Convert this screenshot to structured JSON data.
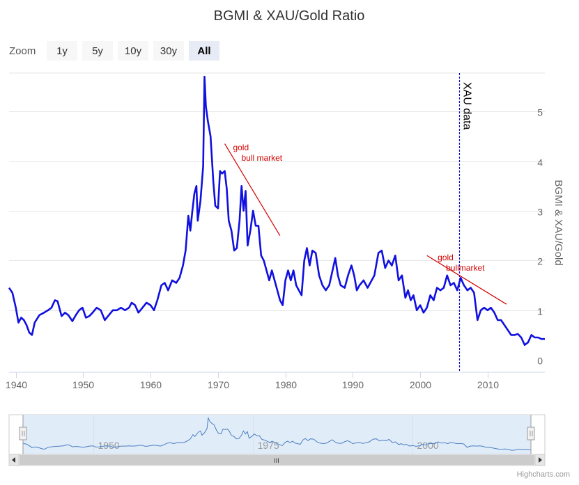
{
  "chart_data": {
    "type": "line",
    "title": "BGMI & XAU/Gold Ratio",
    "ylabel": "BGMI & XAU/Gold",
    "xlabel": "",
    "xlim": [
      1939,
      2018.5
    ],
    "ylim": [
      0,
      6
    ],
    "x_ticks": [
      1940,
      1950,
      1960,
      1970,
      1980,
      1990,
      2000,
      2010
    ],
    "y_ticks": [
      0,
      1,
      2,
      3,
      4,
      5
    ],
    "grid": true,
    "legend": "none",
    "series": [
      {
        "color": "#1010e0",
        "points": [
          [
            1939.0,
            1.45
          ],
          [
            1939.5,
            1.35
          ],
          [
            1940.0,
            1.05
          ],
          [
            1940.4,
            0.75
          ],
          [
            1940.8,
            0.85
          ],
          [
            1941.2,
            0.8
          ],
          [
            1941.6,
            0.7
          ],
          [
            1942.0,
            0.55
          ],
          [
            1942.4,
            0.5
          ],
          [
            1942.8,
            0.75
          ],
          [
            1943.5,
            0.9
          ],
          [
            1944.2,
            0.95
          ],
          [
            1944.8,
            1.0
          ],
          [
            1945.3,
            1.05
          ],
          [
            1945.8,
            1.2
          ],
          [
            1946.2,
            1.18
          ],
          [
            1946.8,
            0.88
          ],
          [
            1947.3,
            0.95
          ],
          [
            1947.8,
            0.9
          ],
          [
            1948.4,
            0.78
          ],
          [
            1948.9,
            0.9
          ],
          [
            1949.4,
            1.0
          ],
          [
            1949.9,
            1.05
          ],
          [
            1950.4,
            0.85
          ],
          [
            1950.9,
            0.88
          ],
          [
            1951.4,
            0.95
          ],
          [
            1952.0,
            1.05
          ],
          [
            1952.6,
            1.0
          ],
          [
            1953.2,
            0.8
          ],
          [
            1953.8,
            0.9
          ],
          [
            1954.4,
            1.0
          ],
          [
            1955.0,
            1.0
          ],
          [
            1955.6,
            1.05
          ],
          [
            1956.2,
            1.0
          ],
          [
            1956.8,
            1.05
          ],
          [
            1957.2,
            1.15
          ],
          [
            1957.7,
            1.1
          ],
          [
            1958.2,
            0.95
          ],
          [
            1958.8,
            1.05
          ],
          [
            1959.4,
            1.15
          ],
          [
            1960.0,
            1.1
          ],
          [
            1960.5,
            1.0
          ],
          [
            1961.0,
            1.2
          ],
          [
            1961.6,
            1.5
          ],
          [
            1962.1,
            1.55
          ],
          [
            1962.6,
            1.4
          ],
          [
            1963.2,
            1.6
          ],
          [
            1963.8,
            1.55
          ],
          [
            1964.3,
            1.65
          ],
          [
            1964.8,
            1.9
          ],
          [
            1965.2,
            2.2
          ],
          [
            1965.6,
            2.9
          ],
          [
            1965.9,
            2.6
          ],
          [
            1966.2,
            3.0
          ],
          [
            1966.5,
            3.35
          ],
          [
            1966.8,
            3.5
          ],
          [
            1967.0,
            2.8
          ],
          [
            1967.4,
            3.2
          ],
          [
            1967.8,
            3.9
          ],
          [
            1968.0,
            5.7
          ],
          [
            1968.2,
            5.1
          ],
          [
            1968.5,
            4.8
          ],
          [
            1968.9,
            4.5
          ],
          [
            1969.3,
            3.6
          ],
          [
            1969.6,
            3.1
          ],
          [
            1970.0,
            3.05
          ],
          [
            1970.3,
            3.8
          ],
          [
            1970.6,
            3.75
          ],
          [
            1971.0,
            3.8
          ],
          [
            1971.3,
            3.45
          ],
          [
            1971.6,
            2.8
          ],
          [
            1972.0,
            2.6
          ],
          [
            1972.4,
            2.2
          ],
          [
            1972.8,
            2.25
          ],
          [
            1973.2,
            2.8
          ],
          [
            1973.5,
            3.5
          ],
          [
            1973.8,
            3.0
          ],
          [
            1974.1,
            3.4
          ],
          [
            1974.4,
            2.3
          ],
          [
            1974.8,
            2.6
          ],
          [
            1975.2,
            3.0
          ],
          [
            1975.6,
            2.7
          ],
          [
            1976.0,
            2.7
          ],
          [
            1976.4,
            2.1
          ],
          [
            1976.8,
            2.0
          ],
          [
            1977.2,
            1.8
          ],
          [
            1977.6,
            1.6
          ],
          [
            1978.0,
            1.8
          ],
          [
            1978.4,
            1.6
          ],
          [
            1978.8,
            1.4
          ],
          [
            1979.2,
            1.2
          ],
          [
            1979.6,
            1.1
          ],
          [
            1980.0,
            1.6
          ],
          [
            1980.4,
            1.8
          ],
          [
            1980.8,
            1.6
          ],
          [
            1981.2,
            1.8
          ],
          [
            1981.6,
            1.5
          ],
          [
            1982.0,
            1.4
          ],
          [
            1982.4,
            1.3
          ],
          [
            1982.8,
            2.0
          ],
          [
            1983.2,
            2.25
          ],
          [
            1983.6,
            1.9
          ],
          [
            1984.0,
            2.2
          ],
          [
            1984.5,
            2.15
          ],
          [
            1985.0,
            1.7
          ],
          [
            1985.5,
            1.5
          ],
          [
            1986.0,
            1.4
          ],
          [
            1986.5,
            1.5
          ],
          [
            1987.0,
            1.8
          ],
          [
            1987.4,
            2.05
          ],
          [
            1987.8,
            1.7
          ],
          [
            1988.2,
            1.5
          ],
          [
            1988.8,
            1.45
          ],
          [
            1989.3,
            1.7
          ],
          [
            1989.8,
            1.9
          ],
          [
            1990.2,
            1.7
          ],
          [
            1990.6,
            1.4
          ],
          [
            1991.0,
            1.5
          ],
          [
            1991.6,
            1.6
          ],
          [
            1992.2,
            1.45
          ],
          [
            1992.6,
            1.55
          ],
          [
            1993.2,
            1.7
          ],
          [
            1993.8,
            2.15
          ],
          [
            1994.3,
            2.2
          ],
          [
            1994.8,
            1.85
          ],
          [
            1995.3,
            2.0
          ],
          [
            1995.8,
            1.9
          ],
          [
            1996.3,
            2.1
          ],
          [
            1996.8,
            1.6
          ],
          [
            1997.3,
            1.7
          ],
          [
            1997.8,
            1.25
          ],
          [
            1998.2,
            1.4
          ],
          [
            1998.6,
            1.2
          ],
          [
            1999.0,
            1.3
          ],
          [
            1999.5,
            1.0
          ],
          [
            2000.0,
            1.1
          ],
          [
            2000.5,
            0.95
          ],
          [
            2001.0,
            1.05
          ],
          [
            2001.5,
            1.3
          ],
          [
            2002.0,
            1.2
          ],
          [
            2002.5,
            1.45
          ],
          [
            2003.0,
            1.4
          ],
          [
            2003.5,
            1.45
          ],
          [
            2004.0,
            1.7
          ],
          [
            2004.5,
            1.5
          ],
          [
            2005.0,
            1.55
          ],
          [
            2005.5,
            1.4
          ],
          [
            2006.0,
            1.65
          ],
          [
            2006.5,
            1.5
          ],
          [
            2007.0,
            1.4
          ],
          [
            2007.5,
            1.45
          ],
          [
            2008.0,
            1.35
          ],
          [
            2008.5,
            0.8
          ],
          [
            2009.0,
            1.0
          ],
          [
            2009.5,
            1.05
          ],
          [
            2010.0,
            1.0
          ],
          [
            2010.5,
            1.05
          ],
          [
            2011.0,
            0.95
          ],
          [
            2011.5,
            0.8
          ],
          [
            2012.0,
            0.8
          ],
          [
            2012.5,
            0.7
          ],
          [
            2013.0,
            0.6
          ],
          [
            2013.5,
            0.5
          ],
          [
            2014.0,
            0.5
          ],
          [
            2014.5,
            0.52
          ],
          [
            2015.0,
            0.45
          ],
          [
            2015.5,
            0.3
          ],
          [
            2016.0,
            0.35
          ],
          [
            2016.5,
            0.5
          ],
          [
            2017.0,
            0.45
          ],
          [
            2017.5,
            0.45
          ],
          [
            2018.0,
            0.42
          ],
          [
            2018.5,
            0.42
          ]
        ]
      }
    ],
    "annotations": [
      {
        "text_line1": "gold",
        "text_line2": "bull market",
        "color": "#d40000",
        "from": [
          1971.0,
          4.35
        ],
        "to": [
          1979.2,
          2.5
        ]
      },
      {
        "text_line1": "gold",
        "text_line2": "bullmarket",
        "color": "#d40000",
        "from": [
          2001.0,
          2.1
        ],
        "to": [
          2012.8,
          1.12
        ]
      }
    ],
    "plot_line": {
      "x": 2005.8,
      "label": "XAU data",
      "color": "#1010c0"
    }
  },
  "zoom": {
    "label": "Zoom",
    "buttons": [
      {
        "label": "1y",
        "selected": false
      },
      {
        "label": "5y",
        "selected": false
      },
      {
        "label": "10y",
        "selected": false
      },
      {
        "label": "30y",
        "selected": false
      },
      {
        "label": "All",
        "selected": true
      }
    ]
  },
  "navigator": {
    "ticks": [
      "1950",
      "1975",
      "2000"
    ],
    "scrollbar_grip": "III"
  },
  "credits": "Highcharts.com"
}
